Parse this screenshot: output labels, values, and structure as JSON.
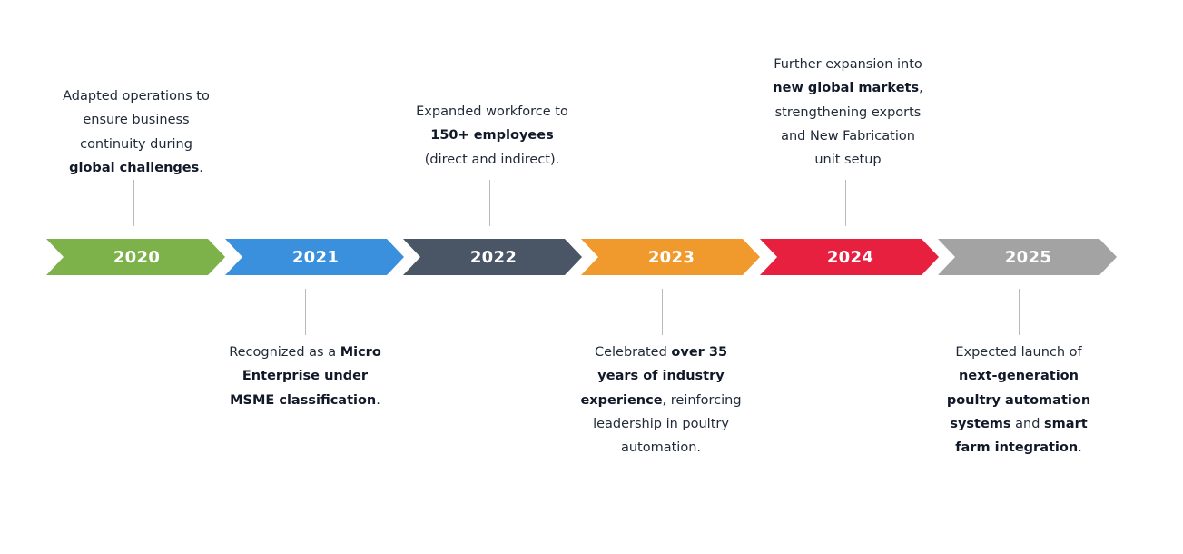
{
  "colors": {
    "2020": "#7db24a",
    "2021": "#3a90dd",
    "2022": "#4a5566",
    "2023": "#f0992d",
    "2024": "#e82040",
    "2025": "#a3a3a3"
  },
  "milestones": [
    {
      "year": "2020",
      "position": "above",
      "text": [
        {
          "t": "Adapted operations to",
          "b": false
        },
        {
          "br": true
        },
        {
          "t": "ensure business",
          "b": false
        },
        {
          "br": true
        },
        {
          "t": "continuity during",
          "b": false
        },
        {
          "br": true
        },
        {
          "t": "global challenges",
          "b": true
        },
        {
          "t": ".",
          "b": false
        }
      ]
    },
    {
      "year": "2021",
      "position": "below",
      "text": [
        {
          "t": "Recognized as a ",
          "b": false
        },
        {
          "t": "Micro",
          "b": true
        },
        {
          "br": true
        },
        {
          "t": "Enterprise under",
          "b": true
        },
        {
          "br": true
        },
        {
          "t": "MSME classification",
          "b": true
        },
        {
          "t": ".",
          "b": false
        }
      ]
    },
    {
      "year": "2022",
      "position": "above",
      "text": [
        {
          "t": "Expanded workforce to",
          "b": false
        },
        {
          "br": true
        },
        {
          "t": "150+ employees",
          "b": true
        },
        {
          "br": true
        },
        {
          "t": "(direct and indirect).",
          "b": false
        }
      ]
    },
    {
      "year": "2023",
      "position": "below",
      "text": [
        {
          "t": "Celebrated ",
          "b": false
        },
        {
          "t": "over 35",
          "b": true
        },
        {
          "br": true
        },
        {
          "t": "years of industry",
          "b": true
        },
        {
          "br": true
        },
        {
          "t": "experience",
          "b": true
        },
        {
          "t": ", reinforcing",
          "b": false
        },
        {
          "br": true
        },
        {
          "t": "leadership in poultry",
          "b": false
        },
        {
          "br": true
        },
        {
          "t": "automation.",
          "b": false
        }
      ]
    },
    {
      "year": "2024",
      "position": "above",
      "text": [
        {
          "t": "Further expansion into",
          "b": false
        },
        {
          "br": true
        },
        {
          "t": "new global markets",
          "b": true
        },
        {
          "t": ",",
          "b": false
        },
        {
          "br": true
        },
        {
          "t": "strengthening exports",
          "b": false
        },
        {
          "br": true
        },
        {
          "t": "and New Fabrication",
          "b": false
        },
        {
          "br": true
        },
        {
          "t": "unit setup",
          "b": false
        }
      ]
    },
    {
      "year": "2025",
      "position": "below",
      "text": [
        {
          "t": "Expected launch of",
          "b": false
        },
        {
          "br": true
        },
        {
          "t": "next-generation",
          "b": true
        },
        {
          "br": true
        },
        {
          "t": "poultry automation",
          "b": true
        },
        {
          "br": true
        },
        {
          "t": "systems",
          "b": true
        },
        {
          "t": " and ",
          "b": false
        },
        {
          "t": "smart",
          "b": true
        },
        {
          "br": true
        },
        {
          "t": "farm integration",
          "b": true
        },
        {
          "t": ".",
          "b": false
        }
      ]
    }
  ]
}
